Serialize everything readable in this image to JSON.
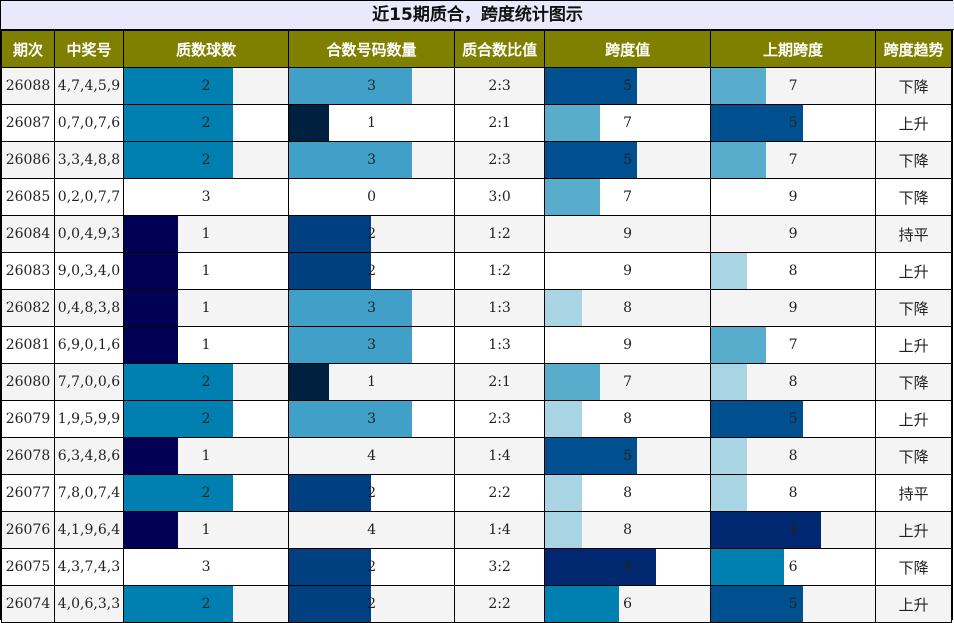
{
  "title": "近15期质合，跨度统计图示",
  "headers": [
    "期次",
    "中奖号",
    "质数球数",
    "合数号码数量",
    "质合数比值",
    "跨度值",
    "上期跨度",
    "跨度趋势"
  ],
  "colors": {
    "prime": {
      "1": "#000055",
      "2": "#0080b0",
      "3": "#ffffff"
    },
    "composite": {
      "0": "#ffffff",
      "1": "#00203f",
      "2": "#003f80",
      "3": "#40a0c8",
      "4": "#ffffff"
    },
    "span": {
      "4": "#002870",
      "5": "#005090",
      "6": "#0080b0",
      "7": "#58accc",
      "8": "#a8d4e4",
      "9": "#ffffff"
    }
  },
  "chart_data": {
    "type": "table",
    "title": "近15期质合，跨度统计图示",
    "columns": [
      "期次",
      "中奖号",
      "质数球数",
      "合数号码数量",
      "质合数比值",
      "跨度值",
      "上期跨度",
      "跨度趋势"
    ],
    "rows": [
      {
        "issue": "26088",
        "numbers": "4,7,4,5,9",
        "prime": 2,
        "composite": 3,
        "ratio": "2:3",
        "span": 5,
        "prev_span": 7,
        "trend": "下降"
      },
      {
        "issue": "26087",
        "numbers": "0,7,0,7,6",
        "prime": 2,
        "composite": 1,
        "ratio": "2:1",
        "span": 7,
        "prev_span": 5,
        "trend": "上升"
      },
      {
        "issue": "26086",
        "numbers": "3,3,4,8,8",
        "prime": 2,
        "composite": 3,
        "ratio": "2:3",
        "span": 5,
        "prev_span": 7,
        "trend": "下降"
      },
      {
        "issue": "26085",
        "numbers": "0,2,0,7,7",
        "prime": 3,
        "composite": 0,
        "ratio": "3:0",
        "span": 7,
        "prev_span": 9,
        "trend": "下降"
      },
      {
        "issue": "26084",
        "numbers": "0,0,4,9,3",
        "prime": 1,
        "composite": 2,
        "ratio": "1:2",
        "span": 9,
        "prev_span": 9,
        "trend": "持平"
      },
      {
        "issue": "26083",
        "numbers": "9,0,3,4,0",
        "prime": 1,
        "composite": 2,
        "ratio": "1:2",
        "span": 9,
        "prev_span": 8,
        "trend": "上升"
      },
      {
        "issue": "26082",
        "numbers": "0,4,8,3,8",
        "prime": 1,
        "composite": 3,
        "ratio": "1:3",
        "span": 8,
        "prev_span": 9,
        "trend": "下降"
      },
      {
        "issue": "26081",
        "numbers": "6,9,0,1,6",
        "prime": 1,
        "composite": 3,
        "ratio": "1:3",
        "span": 9,
        "prev_span": 7,
        "trend": "上升"
      },
      {
        "issue": "26080",
        "numbers": "7,7,0,0,6",
        "prime": 2,
        "composite": 1,
        "ratio": "2:1",
        "span": 7,
        "prev_span": 8,
        "trend": "下降"
      },
      {
        "issue": "26079",
        "numbers": "1,9,5,9,9",
        "prime": 2,
        "composite": 3,
        "ratio": "2:3",
        "span": 8,
        "prev_span": 5,
        "trend": "上升"
      },
      {
        "issue": "26078",
        "numbers": "6,3,4,8,6",
        "prime": 1,
        "composite": 4,
        "ratio": "1:4",
        "span": 5,
        "prev_span": 8,
        "trend": "下降"
      },
      {
        "issue": "26077",
        "numbers": "7,8,0,7,4",
        "prime": 2,
        "composite": 2,
        "ratio": "2:2",
        "span": 8,
        "prev_span": 8,
        "trend": "持平"
      },
      {
        "issue": "26076",
        "numbers": "4,1,9,6,4",
        "prime": 1,
        "composite": 4,
        "ratio": "1:4",
        "span": 8,
        "prev_span": 4,
        "trend": "上升"
      },
      {
        "issue": "26075",
        "numbers": "4,3,7,4,3",
        "prime": 3,
        "composite": 2,
        "ratio": "3:2",
        "span": 4,
        "prev_span": 6,
        "trend": "下降"
      },
      {
        "issue": "26074",
        "numbers": "4,0,6,3,3",
        "prime": 2,
        "composite": 2,
        "ratio": "2:2",
        "span": 6,
        "prev_span": 5,
        "trend": "上升"
      }
    ]
  }
}
